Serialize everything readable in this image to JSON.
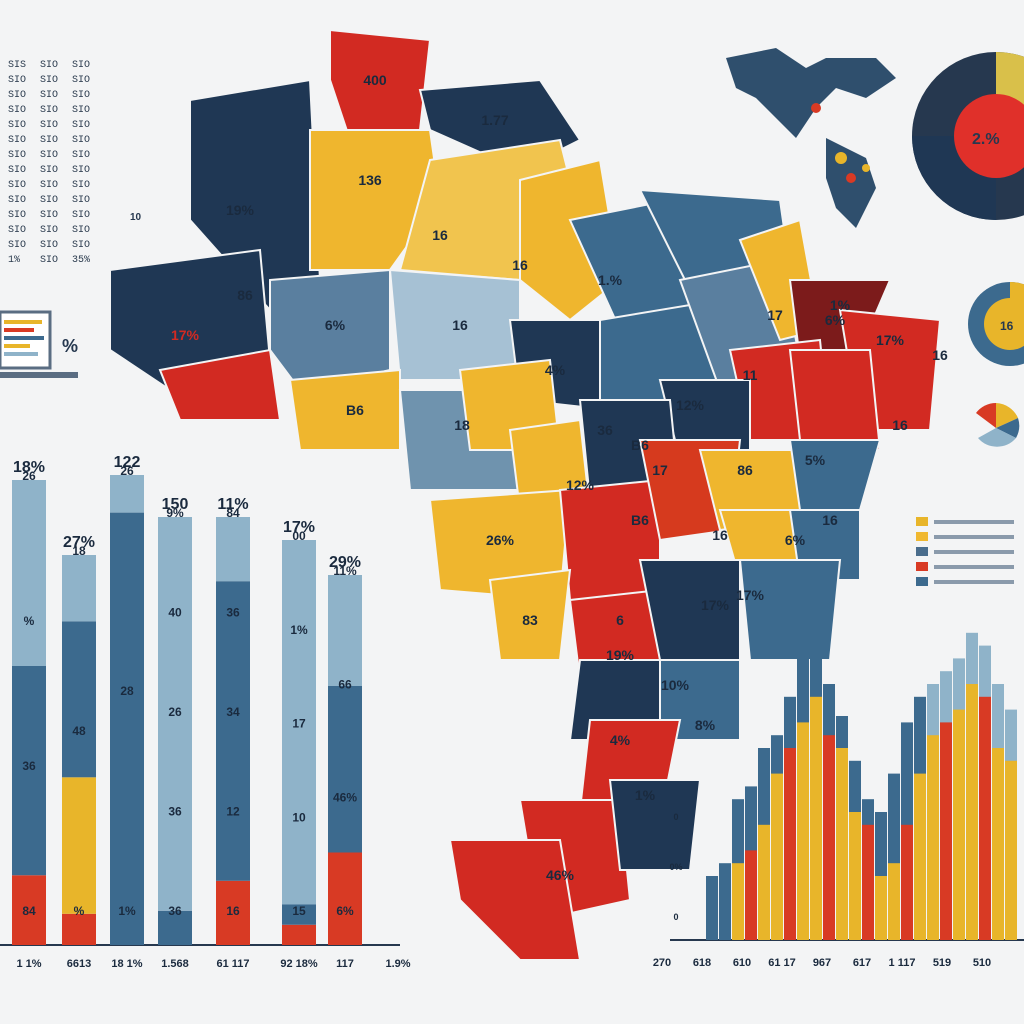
{
  "table": {
    "header": "",
    "rows": [
      [
        "SIS",
        "SIO",
        "SIO"
      ],
      [
        "SIO",
        "SIO",
        "SIO"
      ],
      [
        "SIO",
        "SIO",
        "SIO"
      ],
      [
        "SIO",
        "SIO",
        "SIO"
      ],
      [
        "SIO",
        "SIO",
        "SIO"
      ],
      [
        "SIO",
        "SIO",
        "SIO"
      ],
      [
        "SIO",
        "SIO",
        "SIO"
      ],
      [
        "SIO",
        "SIO",
        "SIO"
      ],
      [
        "SIO",
        "SIO",
        "SIO"
      ],
      [
        "SIO",
        "SIO",
        "SIO"
      ],
      [
        "SIO",
        "SIO",
        "SIO"
      ],
      [
        "SIO",
        "SIO",
        "SIO"
      ],
      [
        "SIO",
        "SIO",
        "SIO"
      ],
      [
        "1%",
        "SIO",
        "35%"
      ]
    ],
    "side_label": "10"
  },
  "laptop": {
    "label": "%"
  },
  "map": {
    "labels": [
      "400",
      "1.77",
      "19%",
      "136",
      "16",
      "17%",
      "86",
      "16",
      "1.%",
      "6%",
      "16",
      "B6",
      "18",
      "12%",
      "4%",
      "36",
      "17",
      "B6",
      "26%",
      "83",
      "19%",
      "11",
      "17",
      "6%",
      "17%",
      "5%",
      "16",
      "86",
      "16",
      "6%",
      "17%",
      "10%",
      "1%",
      "8%",
      "17%",
      "4%",
      "46%",
      "1%",
      "16",
      "6",
      "B6",
      "12%",
      "16"
    ]
  },
  "pie": {
    "label": "2.%",
    "colors": [
      "#d9c04a",
      "#e0302a",
      "#26384f",
      "#e8b52a"
    ]
  },
  "donut_small": {
    "label": "16"
  },
  "globe_caption": "",
  "legend": {
    "items": [
      {
        "color": "#e8b52a",
        "label": ""
      },
      {
        "color": "#f0b830",
        "label": ""
      },
      {
        "color": "#4a6d8c",
        "label": ""
      },
      {
        "color": "#d83a24",
        "label": ""
      },
      {
        "color": "#3c6a8e",
        "label": ""
      }
    ]
  },
  "chart_data": [
    {
      "type": "bar",
      "stacked": true,
      "top_labels": [
        "18%",
        "27%",
        "122",
        "150",
        "11%",
        "17%",
        "29%"
      ],
      "x_labels": [
        "1 1%",
        "6613",
        "18 1%",
        "1.568",
        "61 117",
        "92 18%",
        "117",
        "1.9%"
      ],
      "categories": [
        "A",
        "B",
        "C",
        "D",
        "E",
        "F",
        "G"
      ],
      "series": [
        {
          "values": [
            15,
            8,
            0,
            0,
            15,
            5,
            25
          ]
        },
        {
          "values": [
            0,
            35,
            0,
            0,
            0,
            0,
            0
          ]
        },
        {
          "values": [
            45,
            40,
            92,
            8,
            70,
            5,
            45
          ]
        },
        {
          "values": [
            40,
            17,
            8,
            92,
            15,
            90,
            30
          ]
        }
      ],
      "segment_labels": [
        [
          "26",
          "%",
          "36",
          "84"
        ],
        [
          "18",
          "48",
          "%"
        ],
        [
          "26",
          "28",
          "1%"
        ],
        [
          "9%",
          "40",
          "26",
          "36",
          "36"
        ],
        [
          "84",
          "36",
          "34",
          "12",
          "16"
        ],
        [
          "00",
          "1%",
          "17",
          "10",
          "15"
        ],
        [
          "11%",
          "66",
          "46%",
          "6%"
        ]
      ],
      "colors": [
        "#d83a24",
        "#e8b52a",
        "#3c6a8e",
        "#8fb3c9"
      ]
    },
    {
      "type": "bar",
      "x_labels": [
        "270",
        "618",
        "610",
        "61 17",
        "967",
        "617",
        "1 117",
        "519",
        "510"
      ],
      "y_labels": [
        "0",
        "0%",
        "0"
      ],
      "categories": [
        "1",
        "2",
        "3",
        "4",
        "5",
        "6",
        "7",
        "8",
        "9",
        "10",
        "11",
        "12",
        "13",
        "14",
        "15",
        "16",
        "17",
        "18",
        "19",
        "20",
        "21",
        "22",
        "23",
        "24"
      ],
      "series": [
        {
          "name": "",
          "values": [
            10,
            12,
            22,
            24,
            30,
            32,
            38,
            44,
            48,
            40,
            35,
            28,
            22,
            20,
            26,
            34,
            38,
            40,
            42,
            44,
            48,
            46,
            40,
            36
          ]
        },
        {
          "name": "",
          "values": [
            0,
            0,
            12,
            14,
            18,
            26,
            30,
            34,
            38,
            32,
            30,
            20,
            18,
            10,
            12,
            18,
            26,
            32,
            34,
            36,
            40,
            38,
            30,
            28
          ]
        }
      ],
      "colors": [
        "#3c6a8e",
        "#e8b52a",
        "#d83a24",
        "#8fb3c9"
      ]
    }
  ]
}
